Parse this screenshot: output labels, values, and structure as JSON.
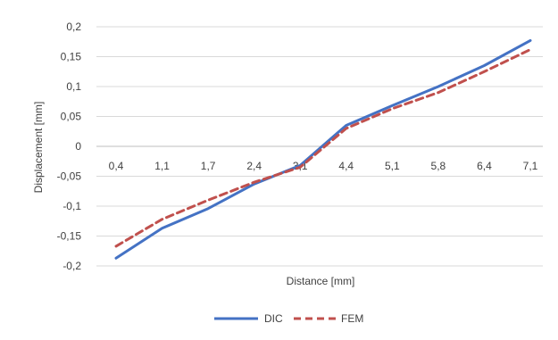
{
  "chart_data": {
    "type": "line",
    "title": "",
    "xlabel": "Distance [mm]",
    "ylabel": "Displacement [mm]",
    "categories": [
      "0,4",
      "1,1",
      "1,7",
      "2,4",
      "3,1",
      "4,4",
      "5,1",
      "5,8",
      "6,4",
      "7,1"
    ],
    "yticks": [
      "0,2",
      "0,15",
      "0,1",
      "0,05",
      "0",
      "-0,05",
      "-0,1",
      "-0,15",
      "-0,2"
    ],
    "ylim": [
      -0.2,
      0.2
    ],
    "grid": true,
    "legend_position": "bottom",
    "series": [
      {
        "name": "DIC",
        "color": "#4472c4",
        "dash": "solid",
        "values": [
          -0.187,
          -0.137,
          -0.104,
          -0.063,
          -0.032,
          0.035,
          0.068,
          0.1,
          0.135,
          0.177
        ]
      },
      {
        "name": "FEM",
        "color": "#c0504d",
        "dash": "dashed",
        "values": [
          -0.167,
          -0.122,
          -0.09,
          -0.06,
          -0.035,
          0.03,
          0.063,
          0.09,
          0.125,
          0.162
        ]
      }
    ]
  }
}
